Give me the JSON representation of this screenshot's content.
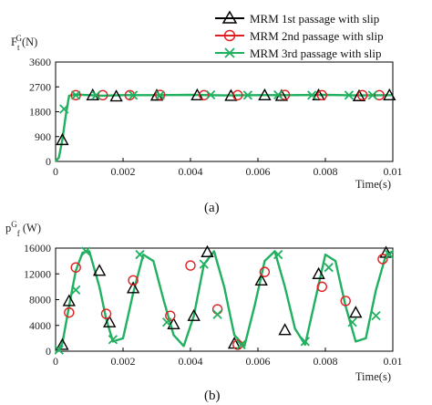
{
  "legend": [
    {
      "label": "MRM 1st passage with slip",
      "color": "#000000",
      "marker": "triangle"
    },
    {
      "label": "MRM 2nd passage with slip",
      "color": "#e02020",
      "marker": "circle"
    },
    {
      "label": "MRM 3rd passage with slip",
      "color": "#20b060",
      "marker": "x"
    }
  ],
  "chart_data": [
    {
      "type": "line",
      "caption": "(a)",
      "ylabel": "F_t^G(N)",
      "xlabel": "Time(s)",
      "xlim": [
        0,
        0.01
      ],
      "ylim": [
        0,
        3600
      ],
      "xticks": [
        0,
        0.002,
        0.004,
        0.006,
        0.008,
        0.01
      ],
      "xtick_labels": [
        "0",
        "0.002",
        "0.004",
        "0.006",
        "0.008",
        "0.01"
      ],
      "yticks": [
        0,
        900,
        1800,
        2700,
        3600
      ],
      "ytick_labels": [
        "0",
        "900",
        "1800",
        "2700",
        "3600"
      ],
      "series": [
        {
          "name": "MRM 1st passage with slip",
          "x": [
            0,
            0.0001,
            0.0002,
            0.0003,
            0.0004,
            0.0006,
            0.001,
            0.0014,
            0.002,
            0.003,
            0.004,
            0.005,
            0.006,
            0.007,
            0.008,
            0.009,
            0.01
          ],
          "y": [
            0,
            150,
            780,
            1650,
            2380,
            2420,
            2400,
            2380,
            2400,
            2400,
            2410,
            2390,
            2400,
            2400,
            2410,
            2390,
            2400
          ]
        },
        {
          "name": "MRM 2nd passage with slip",
          "x": [
            0,
            0.0001,
            0.0002,
            0.0003,
            0.0004,
            0.0006,
            0.001,
            0.0014,
            0.002,
            0.003,
            0.004,
            0.005,
            0.006,
            0.007,
            0.008,
            0.009,
            0.01
          ],
          "y": [
            0,
            150,
            780,
            1650,
            2380,
            2420,
            2400,
            2380,
            2400,
            2400,
            2410,
            2390,
            2400,
            2400,
            2410,
            2390,
            2400
          ]
        },
        {
          "name": "MRM 3rd passage with slip",
          "x": [
            0,
            0.0001,
            0.0002,
            0.0003,
            0.0004,
            0.0006,
            0.001,
            0.0014,
            0.002,
            0.003,
            0.004,
            0.005,
            0.006,
            0.007,
            0.008,
            0.009,
            0.01
          ],
          "y": [
            0,
            150,
            780,
            1650,
            2380,
            2420,
            2400,
            2380,
            2400,
            2400,
            2410,
            2390,
            2400,
            2400,
            2410,
            2390,
            2400
          ]
        }
      ],
      "markers": [
        {
          "series": 0,
          "points": [
            [
              0.0002,
              780
            ],
            [
              0.0011,
              2400
            ],
            [
              0.0018,
              2360
            ],
            [
              0.003,
              2390
            ],
            [
              0.0042,
              2400
            ],
            [
              0.0052,
              2380
            ],
            [
              0.0062,
              2400
            ],
            [
              0.0067,
              2380
            ],
            [
              0.0078,
              2400
            ],
            [
              0.009,
              2370
            ],
            [
              0.0099,
              2400
            ]
          ]
        },
        {
          "series": 1,
          "points": [
            [
              0.0006,
              2400
            ],
            [
              0.0014,
              2400
            ],
            [
              0.0022,
              2400
            ],
            [
              0.0031,
              2410
            ],
            [
              0.0044,
              2400
            ],
            [
              0.0054,
              2400
            ],
            [
              0.0068,
              2410
            ],
            [
              0.0079,
              2400
            ],
            [
              0.0091,
              2400
            ],
            [
              0.0096,
              2400
            ]
          ]
        },
        {
          "series": 2,
          "points": [
            [
              0.00025,
              1900
            ],
            [
              0.0006,
              2400
            ],
            [
              0.0012,
              2400
            ],
            [
              0.0023,
              2400
            ],
            [
              0.0031,
              2400
            ],
            [
              0.0046,
              2410
            ],
            [
              0.0057,
              2400
            ],
            [
              0.0066,
              2410
            ],
            [
              0.0076,
              2400
            ],
            [
              0.0087,
              2400
            ],
            [
              0.0094,
              2400
            ]
          ]
        }
      ]
    },
    {
      "type": "line",
      "caption": "(b)",
      "ylabel": "p^G_f (W)",
      "xlabel": "Time(s)",
      "xlim": [
        0,
        0.01
      ],
      "ylim": [
        0,
        16000
      ],
      "xticks": [
        0,
        0.002,
        0.004,
        0.006,
        0.008,
        0.01
      ],
      "xtick_labels": [
        "0",
        "0.002",
        "0.004",
        "0.006",
        "0.008",
        "0.01"
      ],
      "yticks": [
        0,
        4000,
        8000,
        12000,
        16000
      ],
      "ytick_labels": [
        "0",
        "4000",
        "8000",
        "12000",
        "16000"
      ],
      "series": [
        {
          "name": "MRM 1st passage with slip",
          "x": [
            0,
            0.0001,
            0.0002,
            0.0004,
            0.0006,
            0.0008,
            0.001,
            0.0013,
            0.0015,
            0.0017,
            0.002,
            0.0023,
            0.0026,
            0.0029,
            0.0032,
            0.0035,
            0.0038,
            0.0041,
            0.0044,
            0.0047,
            0.005,
            0.0053,
            0.0056,
            0.0059,
            0.0062,
            0.0065,
            0.0068,
            0.0071,
            0.0074,
            0.0077,
            0.008,
            0.0083,
            0.0086,
            0.0089,
            0.0092,
            0.0095,
            0.0098,
            0.01
          ],
          "y": [
            0,
            200,
            1200,
            7000,
            12500,
            15300,
            15500,
            10000,
            5000,
            1500,
            2000,
            9000,
            15000,
            14000,
            8000,
            2500,
            800,
            5500,
            13500,
            15500,
            10000,
            2500,
            800,
            7000,
            14000,
            15500,
            10000,
            3500,
            1000,
            8000,
            15000,
            14000,
            7000,
            1500,
            2000,
            9500,
            15000,
            15500
          ]
        },
        {
          "name": "MRM 2nd passage with slip",
          "x": [
            0,
            0.0001,
            0.0002,
            0.0004,
            0.0006,
            0.0008,
            0.001,
            0.0013,
            0.0015,
            0.0017,
            0.002,
            0.0023,
            0.0026,
            0.0029,
            0.0032,
            0.0035,
            0.0038,
            0.0041,
            0.0044,
            0.0047,
            0.005,
            0.0053,
            0.0056,
            0.0059,
            0.0062,
            0.0065,
            0.0068,
            0.0071,
            0.0074,
            0.0077,
            0.008,
            0.0083,
            0.0086,
            0.0089,
            0.0092,
            0.0095,
            0.0098,
            0.01
          ],
          "y": [
            0,
            200,
            1200,
            7000,
            12500,
            15300,
            15500,
            10000,
            5000,
            1500,
            2000,
            9000,
            15000,
            14000,
            8000,
            2500,
            800,
            5500,
            13500,
            15500,
            10000,
            2500,
            800,
            7000,
            14000,
            15500,
            10000,
            3500,
            1000,
            8000,
            15000,
            14000,
            7000,
            1500,
            2000,
            9500,
            15000,
            15500
          ]
        },
        {
          "name": "MRM 3rd passage with slip",
          "x": [
            0,
            0.0001,
            0.0002,
            0.0004,
            0.0006,
            0.0008,
            0.001,
            0.0013,
            0.0015,
            0.0017,
            0.002,
            0.0023,
            0.0026,
            0.0029,
            0.0032,
            0.0035,
            0.0038,
            0.0041,
            0.0044,
            0.0047,
            0.005,
            0.0053,
            0.0056,
            0.0059,
            0.0062,
            0.0065,
            0.0068,
            0.0071,
            0.0074,
            0.0077,
            0.008,
            0.0083,
            0.0086,
            0.0089,
            0.0092,
            0.0095,
            0.0098,
            0.01
          ],
          "y": [
            0,
            200,
            1200,
            7000,
            12500,
            15300,
            15500,
            10000,
            5000,
            1500,
            2000,
            9000,
            15000,
            14000,
            8000,
            2500,
            800,
            5500,
            13500,
            15500,
            10000,
            2500,
            800,
            7000,
            14000,
            15500,
            10000,
            3500,
            1000,
            8000,
            15000,
            14000,
            7000,
            1500,
            2000,
            9500,
            15000,
            15500
          ]
        }
      ],
      "markers": [
        {
          "series": 0,
          "points": [
            [
              0.0002,
              1000
            ],
            [
              0.0004,
              7800
            ],
            [
              0.0013,
              12500
            ],
            [
              0.0016,
              4500
            ],
            [
              0.0023,
              9800
            ],
            [
              0.0035,
              4200
            ],
            [
              0.0041,
              5500
            ],
            [
              0.0045,
              15400
            ],
            [
              0.0053,
              1200
            ],
            [
              0.0061,
              11000
            ],
            [
              0.0068,
              3300
            ],
            [
              0.0078,
              12000
            ],
            [
              0.0089,
              6000
            ],
            [
              0.0098,
              15300
            ]
          ]
        },
        {
          "name": "",
          "series": 1,
          "points": [
            [
              0.0004,
              6000
            ],
            [
              0.0006,
              13000
            ],
            [
              0.0015,
              5800
            ],
            [
              0.0023,
              11000
            ],
            [
              0.0034,
              5500
            ],
            [
              0.004,
              13300
            ],
            [
              0.0048,
              6500
            ],
            [
              0.0054,
              1000
            ],
            [
              0.0062,
              12300
            ],
            [
              0.0079,
              10000
            ],
            [
              0.0086,
              7800
            ],
            [
              0.0097,
              14300
            ]
          ]
        },
        {
          "series": 2,
          "points": [
            [
              0.0001,
              200
            ],
            [
              0.0006,
              9500
            ],
            [
              0.0009,
              15500
            ],
            [
              0.0017,
              1800
            ],
            [
              0.0025,
              15000
            ],
            [
              0.0033,
              4500
            ],
            [
              0.0044,
              13500
            ],
            [
              0.0048,
              5700
            ],
            [
              0.0055,
              1000
            ],
            [
              0.0066,
              15000
            ],
            [
              0.0074,
              1500
            ],
            [
              0.0081,
              13000
            ],
            [
              0.0088,
              4500
            ],
            [
              0.0095,
              5500
            ],
            [
              0.0099,
              15000
            ]
          ]
        }
      ]
    }
  ]
}
